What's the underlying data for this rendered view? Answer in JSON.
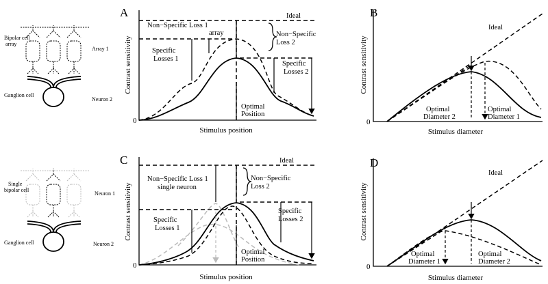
{
  "schematics": [
    {
      "labels": [
        "Bipolar cell",
        "array",
        "Array 1",
        "Ganglion cell",
        "Neuron 2"
      ]
    },
    {
      "labels": [
        "Single",
        "bipolar cell",
        "Neuron 1",
        "Ganglion cell",
        "Neuron 2"
      ]
    }
  ],
  "panels": [
    {
      "label": "A",
      "y_label": "Contrast sensitivity",
      "x_label": "Stimulus position",
      "zero": "0",
      "annotations": [
        [
          "Ideal"
        ],
        [
          "Non−Specific Loss 1",
          "array"
        ],
        [
          "Non−Specific",
          "Loss 2"
        ],
        [
          "Specific",
          "Losses 1"
        ],
        [
          "Specific",
          "Losses 2"
        ],
        [
          "Optimal",
          "Position"
        ]
      ]
    },
    {
      "label": "B",
      "y_label": "Contrast sensitivity",
      "x_label": "Stimulus diameter",
      "zero": "0",
      "annotations": [
        [
          "Ideal"
        ],
        [
          "Optimal",
          "Diameter 2"
        ],
        [
          "Optimal",
          "Diameter 1"
        ]
      ]
    },
    {
      "label": "C",
      "y_label": "Contrast sensitivity",
      "x_label": "Stimulus position",
      "zero": "0",
      "annotations": [
        [
          "Ideal"
        ],
        [
          "Non−Specific Loss 1",
          "single neuron"
        ],
        [
          "Non−Specific",
          "Loss 2"
        ],
        [
          "Specific",
          "Losses 1"
        ],
        [
          "Specific",
          "Losses 2"
        ],
        [
          "Optimal",
          "Position"
        ]
      ]
    },
    {
      "label": "D",
      "y_label": "Contrast sensitivity",
      "x_label": "Stimulus diameter",
      "zero": "0",
      "annotations": [
        [
          "Ideal"
        ],
        [
          "Optimal",
          "Diameter 1"
        ],
        [
          "Optimal",
          "Diameter 2"
        ]
      ]
    }
  ]
}
